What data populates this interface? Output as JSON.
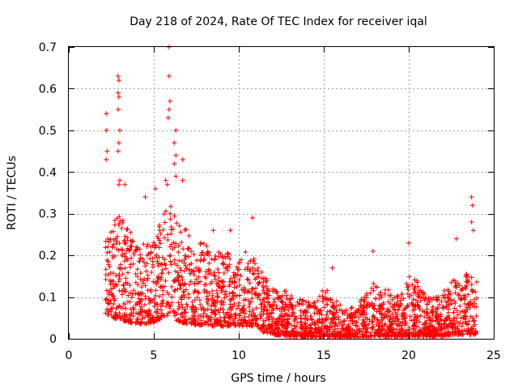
{
  "chart_data": {
    "type": "scatter",
    "title": "Day 218 of 2024, Rate Of TEC Index for receiver iqal",
    "xlabel": "GPS time / hours",
    "ylabel": "ROTI / TECUs",
    "xlim": [
      0,
      25
    ],
    "ylim": [
      0,
      0.7
    ],
    "x_ticks": [
      0,
      5,
      10,
      15,
      20,
      25
    ],
    "x_tick_labels": [
      "0",
      "5",
      "10",
      "15",
      "20",
      "25"
    ],
    "y_ticks": [
      0,
      0.1,
      0.2,
      0.3,
      0.4,
      0.5,
      0.6,
      0.7
    ],
    "y_tick_labels": [
      "0",
      "0.1",
      "0.2",
      "0.3",
      "0.4",
      "0.5",
      "0.6",
      "0.7"
    ],
    "grid": true,
    "marker": "+",
    "marker_color": "#ff0000",
    "data_start_hour": 2.15,
    "data_end_hour": 24.0,
    "envelope": {
      "hours": [
        2.2,
        2.5,
        3.0,
        3.5,
        4.0,
        4.5,
        5.0,
        5.5,
        6.0,
        6.5,
        7.0,
        7.5,
        8.0,
        8.5,
        9.0,
        9.5,
        10.0,
        10.5,
        11.0,
        11.5,
        12.0,
        12.5,
        13.0,
        13.5,
        14.0,
        14.5,
        15.0,
        15.5,
        16.0,
        16.5,
        17.0,
        17.5,
        18.0,
        18.5,
        19.0,
        19.5,
        20.0,
        20.5,
        21.0,
        21.5,
        22.0,
        22.5,
        23.0,
        23.5,
        24.0
      ],
      "typical_max": [
        0.25,
        0.28,
        0.3,
        0.27,
        0.22,
        0.23,
        0.24,
        0.3,
        0.32,
        0.28,
        0.26,
        0.22,
        0.24,
        0.21,
        0.22,
        0.2,
        0.2,
        0.22,
        0.2,
        0.15,
        0.13,
        0.12,
        0.11,
        0.1,
        0.09,
        0.09,
        0.12,
        0.11,
        0.08,
        0.07,
        0.09,
        0.11,
        0.14,
        0.12,
        0.12,
        0.1,
        0.15,
        0.14,
        0.1,
        0.1,
        0.12,
        0.14,
        0.15,
        0.16,
        0.14
      ],
      "baseline": [
        0.06,
        0.05,
        0.045,
        0.04,
        0.035,
        0.035,
        0.04,
        0.045,
        0.05,
        0.04,
        0.035,
        0.03,
        0.035,
        0.03,
        0.03,
        0.03,
        0.03,
        0.03,
        0.025,
        0.015,
        0.01,
        0.008,
        0.006,
        0.005,
        0.005,
        0.004,
        0.005,
        0.005,
        0.004,
        0.004,
        0.004,
        0.004,
        0.006,
        0.006,
        0.005,
        0.005,
        0.006,
        0.006,
        0.005,
        0.005,
        0.006,
        0.008,
        0.01,
        0.01,
        0.01
      ]
    },
    "notable_points": [
      {
        "x": 2.2,
        "y": 0.54
      },
      {
        "x": 2.2,
        "y": 0.5
      },
      {
        "x": 2.25,
        "y": 0.45
      },
      {
        "x": 2.2,
        "y": 0.43
      },
      {
        "x": 2.9,
        "y": 0.63
      },
      {
        "x": 2.95,
        "y": 0.62
      },
      {
        "x": 2.9,
        "y": 0.59
      },
      {
        "x": 2.95,
        "y": 0.58
      },
      {
        "x": 2.9,
        "y": 0.55
      },
      {
        "x": 3.0,
        "y": 0.5
      },
      {
        "x": 2.95,
        "y": 0.47
      },
      {
        "x": 2.9,
        "y": 0.45
      },
      {
        "x": 3.0,
        "y": 0.38
      },
      {
        "x": 2.95,
        "y": 0.37
      },
      {
        "x": 3.3,
        "y": 0.37
      },
      {
        "x": 5.7,
        "y": 0.38
      },
      {
        "x": 5.8,
        "y": 0.37
      },
      {
        "x": 5.1,
        "y": 0.36
      },
      {
        "x": 4.5,
        "y": 0.34
      },
      {
        "x": 5.9,
        "y": 0.7
      },
      {
        "x": 5.9,
        "y": 0.63
      },
      {
        "x": 5.95,
        "y": 0.57
      },
      {
        "x": 5.9,
        "y": 0.55
      },
      {
        "x": 5.85,
        "y": 0.53
      },
      {
        "x": 6.3,
        "y": 0.5
      },
      {
        "x": 6.2,
        "y": 0.47
      },
      {
        "x": 6.3,
        "y": 0.44
      },
      {
        "x": 6.2,
        "y": 0.42
      },
      {
        "x": 6.3,
        "y": 0.39
      },
      {
        "x": 6.7,
        "y": 0.43
      },
      {
        "x": 6.7,
        "y": 0.38
      },
      {
        "x": 10.8,
        "y": 0.29
      },
      {
        "x": 8.5,
        "y": 0.26
      },
      {
        "x": 9.5,
        "y": 0.26
      },
      {
        "x": 23.7,
        "y": 0.34
      },
      {
        "x": 23.75,
        "y": 0.32
      },
      {
        "x": 23.7,
        "y": 0.28
      },
      {
        "x": 23.8,
        "y": 0.26
      },
      {
        "x": 22.8,
        "y": 0.24
      },
      {
        "x": 20.0,
        "y": 0.23
      },
      {
        "x": 17.9,
        "y": 0.21
      },
      {
        "x": 15.5,
        "y": 0.17
      }
    ]
  }
}
